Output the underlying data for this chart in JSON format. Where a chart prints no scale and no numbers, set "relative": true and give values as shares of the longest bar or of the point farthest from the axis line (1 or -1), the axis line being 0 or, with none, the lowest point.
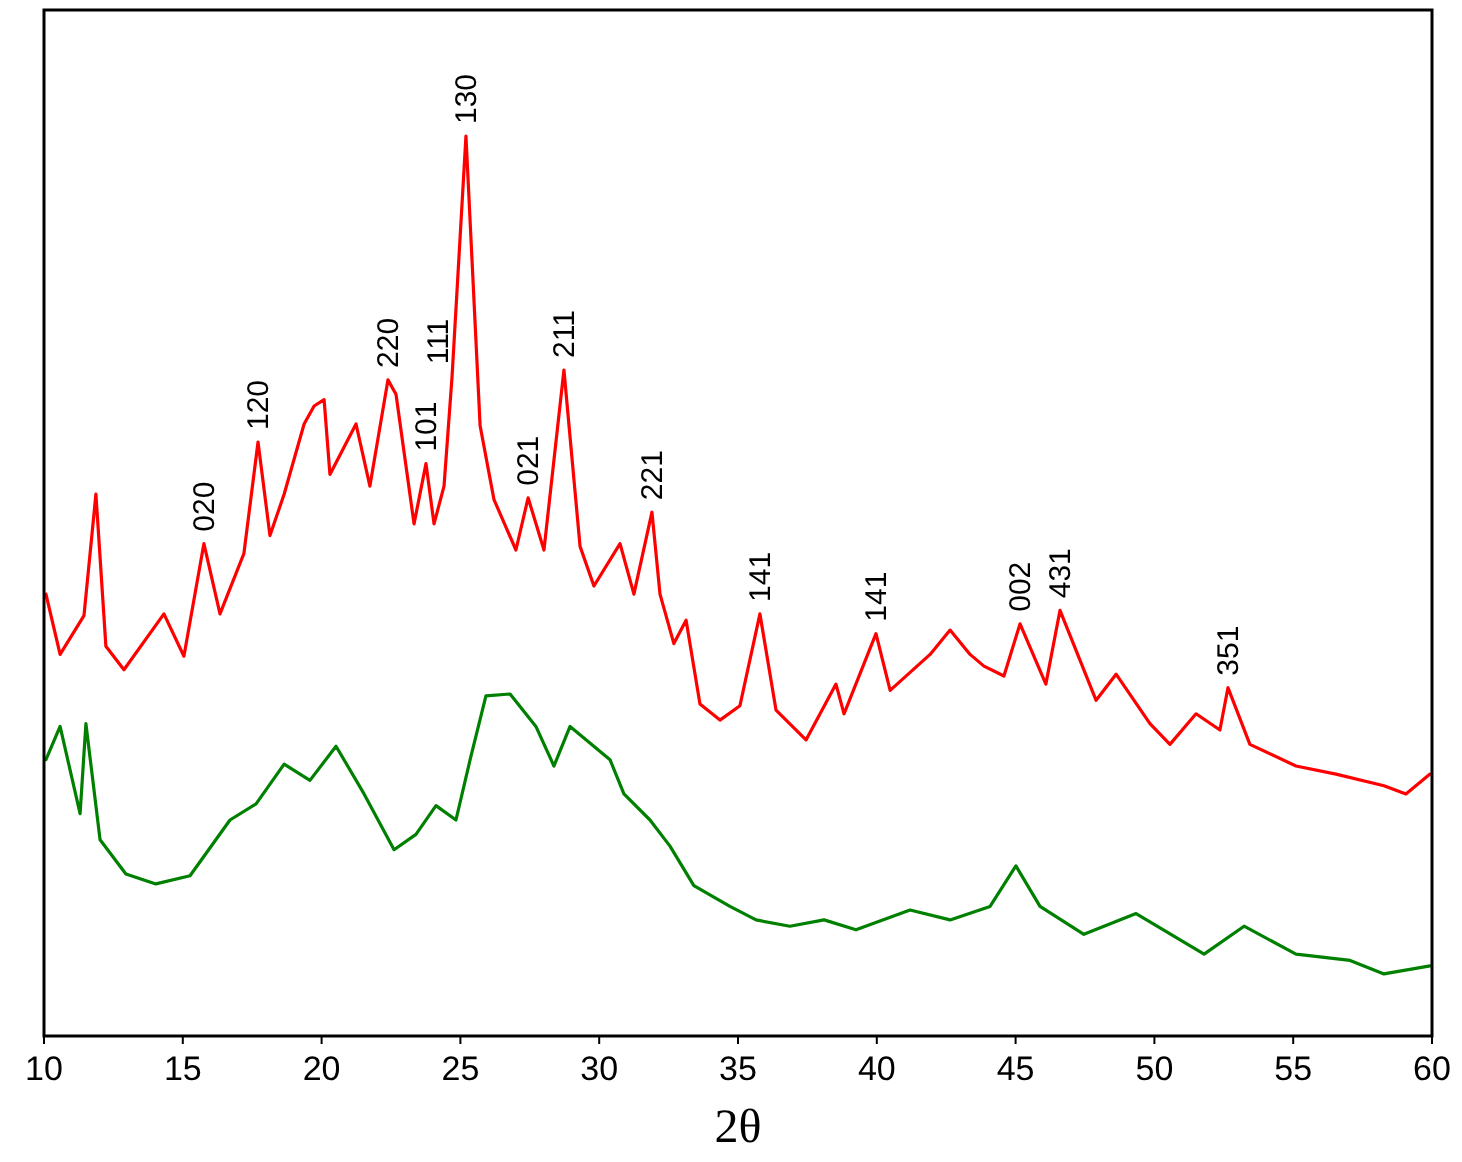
{
  "chart_data": {
    "type": "line",
    "relative": true,
    "xlabel": "2θ",
    "xlim": [
      10,
      60
    ],
    "xticks": [
      10,
      15,
      20,
      25,
      30,
      35,
      40,
      45,
      50,
      55,
      60
    ],
    "tick_labels": "x",
    "grid": false,
    "marker": "none",
    "line_style": "solid",
    "series": [
      {
        "color": "#ff0000",
        "x": [
          10.07,
          10.58,
          11.44,
          11.87,
          12.23,
          12.88,
          14.32,
          15.04,
          15.76,
          16.34,
          17.2,
          17.71,
          18.14,
          18.65,
          19.37,
          19.73,
          20.09,
          20.3,
          21.24,
          21.74,
          22.39,
          22.68,
          23.33,
          23.76,
          24.05,
          24.41,
          24.7,
          25.2,
          25.71,
          26.21,
          27.0,
          27.44,
          28.01,
          28.73,
          29.31,
          29.81,
          30.75,
          31.25,
          31.9,
          32.19,
          32.69,
          33.13,
          33.63,
          34.35,
          35.07,
          35.79,
          36.37,
          37.45,
          38.53,
          38.82,
          39.97,
          40.48,
          41.92,
          42.64,
          43.36,
          43.86,
          44.58,
          45.16,
          46.09,
          46.6,
          47.9,
          48.62,
          49.84,
          50.56,
          51.5,
          52.36,
          52.65,
          53.44,
          55.1,
          56.54,
          58.27,
          59.06,
          59.93
        ],
        "values": [
          0.491,
          0.424,
          0.467,
          0.602,
          0.433,
          0.407,
          0.469,
          0.422,
          0.547,
          0.469,
          0.536,
          0.66,
          0.556,
          0.602,
          0.68,
          0.7,
          0.707,
          0.624,
          0.68,
          0.611,
          0.729,
          0.713,
          0.569,
          0.636,
          0.569,
          0.611,
          0.733,
          1.0,
          0.678,
          0.596,
          0.54,
          0.598,
          0.54,
          0.74,
          0.544,
          0.5,
          0.547,
          0.491,
          0.582,
          0.491,
          0.436,
          0.462,
          0.369,
          0.351,
          0.367,
          0.469,
          0.362,
          0.329,
          0.391,
          0.358,
          0.447,
          0.384,
          0.424,
          0.451,
          0.424,
          0.411,
          0.4,
          0.458,
          0.391,
          0.473,
          0.373,
          0.402,
          0.347,
          0.324,
          0.358,
          0.34,
          0.387,
          0.324,
          0.3,
          0.291,
          0.278,
          0.269,
          0.291
        ]
      },
      {
        "color": "#008000",
        "x": [
          10.07,
          10.58,
          11.3,
          11.51,
          12.02,
          12.95,
          14.03,
          15.26,
          16.7,
          17.64,
          18.65,
          19.58,
          20.52,
          21.53,
          22.61,
          23.4,
          24.12,
          24.84,
          25.35,
          25.92,
          26.79,
          27.72,
          28.37,
          28.95,
          30.39,
          30.89,
          31.83,
          32.55,
          33.41,
          34.71,
          35.65,
          36.87,
          38.1,
          39.25,
          41.2,
          42.64,
          44.08,
          45.01,
          45.88,
          47.46,
          49.34,
          51.79,
          53.23,
          55.1,
          57.05,
          58.27,
          59.93
        ],
        "values": [
          0.307,
          0.344,
          0.247,
          0.347,
          0.218,
          0.18,
          0.169,
          0.178,
          0.24,
          0.258,
          0.302,
          0.284,
          0.322,
          0.269,
          0.207,
          0.224,
          0.256,
          0.24,
          0.307,
          0.378,
          0.38,
          0.344,
          0.3,
          0.344,
          0.307,
          0.269,
          0.24,
          0.211,
          0.167,
          0.144,
          0.129,
          0.122,
          0.129,
          0.118,
          0.14,
          0.129,
          0.144,
          0.189,
          0.144,
          0.113,
          0.136,
          0.091,
          0.122,
          0.091,
          0.084,
          0.069,
          0.078
        ]
      }
    ],
    "annotations": [
      {
        "text": "020",
        "x": 15.76,
        "y": 0.547
      },
      {
        "text": "120",
        "x": 17.71,
        "y": 0.66
      },
      {
        "text": "220",
        "x": 22.39,
        "y": 0.729
      },
      {
        "text": "101",
        "x": 23.76,
        "y": 0.636
      },
      {
        "text": "111",
        "x": 24.7,
        "y": 0.733
      },
      {
        "text": "130",
        "x": 25.2,
        "y": 1.0
      },
      {
        "text": "021",
        "x": 27.44,
        "y": 0.598
      },
      {
        "text": "211",
        "x": 28.73,
        "y": 0.74
      },
      {
        "text": "221",
        "x": 31.9,
        "y": 0.582
      },
      {
        "text": "141",
        "x": 35.79,
        "y": 0.469
      },
      {
        "text": "141",
        "x": 39.97,
        "y": 0.447
      },
      {
        "text": "002",
        "x": 45.16,
        "y": 0.458
      },
      {
        "text": "431",
        "x": 46.6,
        "y": 0.473
      },
      {
        "text": "351",
        "x": 52.65,
        "y": 0.387
      }
    ]
  }
}
